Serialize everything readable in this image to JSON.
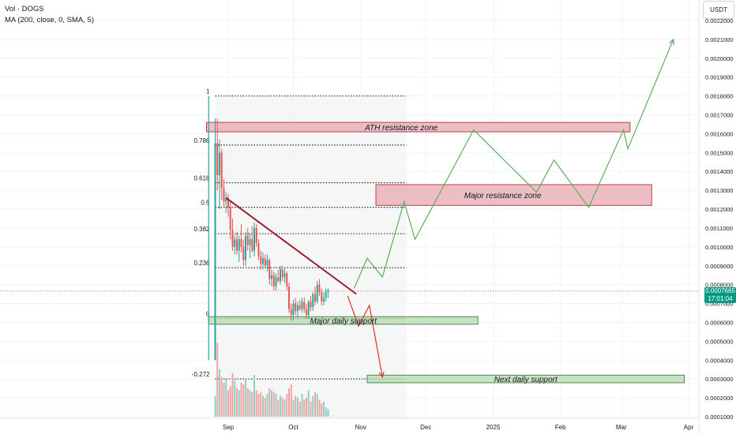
{
  "legend": {
    "line1": "Vol · DOGS",
    "line2": "MA (200, close, 0, SMA, 5)"
  },
  "currency": "USDT",
  "current_price": {
    "value": "0.0007665",
    "countdown": "17:01:04"
  },
  "colors": {
    "up": "#26a69a",
    "down": "#ef5350",
    "vol_up": "#8fd1c6",
    "vol_down": "#f5a3a0",
    "trend": "#9c1f2e",
    "path_up": "#5fae5a",
    "path_down": "#d9342b",
    "zone_red_fill": "#e7a9b0",
    "zone_red_border": "#b8404f",
    "zone_green_fill": "#b5d8b0",
    "zone_green_border": "#4f8a4a",
    "tag_green": "#089981"
  },
  "chart_data": {
    "type": "candlestick",
    "title": "",
    "y_scale": "linear",
    "ylim": [
      1e-05,
      0.00226
    ],
    "y_ticks": [
      "0.0022000",
      "0.0021000",
      "0.0020000",
      "0.0019000",
      "0.0018000",
      "0.0017000",
      "0.0016000",
      "0.0015000",
      "0.0014000",
      "0.0013000",
      "0.0012000",
      "0.0011000",
      "0.0010000",
      "0.0009000",
      "0.0008000",
      "0.0007000",
      "0.0006000",
      "0.0005000",
      "0.0004000",
      "0.0003000",
      "0.0002000",
      "0.0001000"
    ],
    "x_ticks": [
      {
        "label": "Sep",
        "date": "2024-09-01"
      },
      {
        "label": "Oct",
        "date": "2024-10-01"
      },
      {
        "label": "Nov",
        "date": "2024-11-01"
      },
      {
        "label": "Dec",
        "date": "2024-12-01"
      },
      {
        "label": "2025",
        "date": "2025-01-01"
      },
      {
        "label": "Feb",
        "date": "2025-02-01"
      },
      {
        "label": "Mar",
        "date": "2025-03-01"
      },
      {
        "label": "Apr",
        "date": "2025-04-01"
      }
    ],
    "fib_levels": [
      {
        "label": "1",
        "value": 0.0018
      },
      {
        "label": "0.786",
        "value": 0.00154
      },
      {
        "label": "0.618",
        "value": 0.00134
      },
      {
        "label": "0.5",
        "value": 0.00121
      },
      {
        "label": "0.382",
        "value": 0.00107
      },
      {
        "label": "0.236",
        "value": 0.00089
      },
      {
        "label": "0",
        "value": 0.00062
      },
      {
        "label": "-0.272",
        "value": 0.0003
      }
    ],
    "fib_range": {
      "start": "2024-08-26",
      "end": "2024-11-22"
    },
    "zones": [
      {
        "label": "ATH resistance zone",
        "type": "resistance",
        "start": "2024-08-22",
        "end": "2025-03-05",
        "y_low": 0.00161,
        "y_high": 0.00166
      },
      {
        "label": "Major resistance zone",
        "type": "resistance",
        "start": "2024-11-08",
        "end": "2025-03-15",
        "y_low": 0.00122,
        "y_high": 0.00133
      },
      {
        "label": "Major daily support",
        "type": "support",
        "start": "2024-08-23",
        "end": "2024-12-25",
        "y_low": 0.00059,
        "y_high": 0.00063
      },
      {
        "label": "Next daily support",
        "type": "support",
        "start": "2024-11-04",
        "end": "2025-03-30",
        "y_low": 0.00028,
        "y_high": 0.00032
      }
    ],
    "trendline": [
      {
        "date": "2024-08-31",
        "value": 0.00126
      },
      {
        "date": "2024-10-30",
        "value": 0.00075
      }
    ],
    "scenario_bullish": [
      {
        "date": "2024-10-29",
        "value": 0.00078
      },
      {
        "date": "2024-11-04",
        "value": 0.00094
      },
      {
        "date": "2024-11-11",
        "value": 0.00084
      },
      {
        "date": "2024-11-21",
        "value": 0.00124
      },
      {
        "date": "2024-11-26",
        "value": 0.00104
      },
      {
        "date": "2024-12-23",
        "value": 0.00162
      },
      {
        "date": "2025-01-21",
        "value": 0.00129
      },
      {
        "date": "2025-01-29",
        "value": 0.00146
      },
      {
        "date": "2025-02-14",
        "value": 0.00121
      },
      {
        "date": "2025-03-02",
        "value": 0.00162
      },
      {
        "date": "2025-03-04",
        "value": 0.00152
      },
      {
        "date": "2025-03-25",
        "value": 0.0021
      }
    ],
    "scenario_bearish": [
      {
        "date": "2024-10-26",
        "value": 0.00074
      },
      {
        "date": "2024-10-31",
        "value": 0.00058
      },
      {
        "date": "2024-11-05",
        "value": 0.00069
      },
      {
        "date": "2024-11-11",
        "value": 0.00031
      }
    ],
    "candles": [
      {
        "date": "2024-08-26",
        "o": 0.0004,
        "h": 0.00168,
        "l": 0.0004,
        "c": 0.00155
      },
      {
        "date": "2024-08-27",
        "o": 0.00155,
        "h": 0.00168,
        "l": 0.0013,
        "c": 0.00138
      },
      {
        "date": "2024-08-28",
        "o": 0.00138,
        "h": 0.00157,
        "l": 0.0012,
        "c": 0.0015
      },
      {
        "date": "2024-08-29",
        "o": 0.0015,
        "h": 0.00152,
        "l": 0.00125,
        "c": 0.00131
      },
      {
        "date": "2024-08-30",
        "o": 0.00131,
        "h": 0.00136,
        "l": 0.00121,
        "c": 0.00124
      },
      {
        "date": "2024-08-31",
        "o": 0.00124,
        "h": 0.00129,
        "l": 0.00118,
        "c": 0.00126
      },
      {
        "date": "2024-09-01",
        "o": 0.00126,
        "h": 0.00128,
        "l": 0.00116,
        "c": 0.00121
      },
      {
        "date": "2024-09-02",
        "o": 0.00121,
        "h": 0.00124,
        "l": 0.00104,
        "c": 0.00109
      },
      {
        "date": "2024-09-03",
        "o": 0.00109,
        "h": 0.00115,
        "l": 0.00098,
        "c": 0.001
      },
      {
        "date": "2024-09-04",
        "o": 0.001,
        "h": 0.00106,
        "l": 0.00096,
        "c": 0.00104
      },
      {
        "date": "2024-09-05",
        "o": 0.00104,
        "h": 0.00108,
        "l": 0.00096,
        "c": 0.00098
      },
      {
        "date": "2024-09-06",
        "o": 0.00098,
        "h": 0.00106,
        "l": 0.00092,
        "c": 0.00104
      },
      {
        "date": "2024-09-07",
        "o": 0.00104,
        "h": 0.00112,
        "l": 0.00097,
        "c": 0.001
      },
      {
        "date": "2024-09-08",
        "o": 0.001,
        "h": 0.00104,
        "l": 0.0009,
        "c": 0.00093
      },
      {
        "date": "2024-09-09",
        "o": 0.00093,
        "h": 0.00108,
        "l": 0.0009,
        "c": 0.00106
      },
      {
        "date": "2024-09-10",
        "o": 0.00106,
        "h": 0.0011,
        "l": 0.00098,
        "c": 0.00101
      },
      {
        "date": "2024-09-11",
        "o": 0.00101,
        "h": 0.00107,
        "l": 0.00094,
        "c": 0.00104
      },
      {
        "date": "2024-09-12",
        "o": 0.00104,
        "h": 0.00111,
        "l": 0.00097,
        "c": 0.00098
      },
      {
        "date": "2024-09-13",
        "o": 0.00098,
        "h": 0.00113,
        "l": 0.00095,
        "c": 0.0011
      },
      {
        "date": "2024-09-14",
        "o": 0.0011,
        "h": 0.00112,
        "l": 0.001,
        "c": 0.00102
      },
      {
        "date": "2024-09-15",
        "o": 0.00102,
        "h": 0.00104,
        "l": 0.00093,
        "c": 0.00095
      },
      {
        "date": "2024-09-16",
        "o": 0.00095,
        "h": 0.00098,
        "l": 0.00088,
        "c": 0.00091
      },
      {
        "date": "2024-09-17",
        "o": 0.00091,
        "h": 0.00097,
        "l": 0.00088,
        "c": 0.00094
      },
      {
        "date": "2024-09-18",
        "o": 0.00094,
        "h": 0.00096,
        "l": 0.00089,
        "c": 0.0009
      },
      {
        "date": "2024-09-19",
        "o": 0.0009,
        "h": 0.00096,
        "l": 0.00087,
        "c": 0.00093
      },
      {
        "date": "2024-09-20",
        "o": 0.00093,
        "h": 0.00094,
        "l": 0.0008,
        "c": 0.00083
      },
      {
        "date": "2024-09-21",
        "o": 0.00083,
        "h": 0.00088,
        "l": 0.00079,
        "c": 0.00085
      },
      {
        "date": "2024-09-22",
        "o": 0.00085,
        "h": 0.00087,
        "l": 0.00077,
        "c": 0.00079
      },
      {
        "date": "2024-09-23",
        "o": 0.00079,
        "h": 0.00086,
        "l": 0.00077,
        "c": 0.00084
      },
      {
        "date": "2024-09-24",
        "o": 0.00084,
        "h": 0.00088,
        "l": 0.00081,
        "c": 0.00082
      },
      {
        "date": "2024-09-25",
        "o": 0.00082,
        "h": 0.0009,
        "l": 0.0008,
        "c": 0.00088
      },
      {
        "date": "2024-09-26",
        "o": 0.00088,
        "h": 0.0009,
        "l": 0.00082,
        "c": 0.00084
      },
      {
        "date": "2024-09-27",
        "o": 0.00084,
        "h": 0.00089,
        "l": 0.00081,
        "c": 0.00086
      },
      {
        "date": "2024-09-28",
        "o": 0.00086,
        "h": 0.00087,
        "l": 0.00077,
        "c": 0.00079
      },
      {
        "date": "2024-09-29",
        "o": 0.00079,
        "h": 0.00081,
        "l": 0.00065,
        "c": 0.00067
      },
      {
        "date": "2024-09-30",
        "o": 0.00067,
        "h": 0.0007,
        "l": 0.00061,
        "c": 0.00064
      },
      {
        "date": "2024-10-01",
        "o": 0.00064,
        "h": 0.00072,
        "l": 0.00061,
        "c": 0.0007
      },
      {
        "date": "2024-10-02",
        "o": 0.0007,
        "h": 0.00073,
        "l": 0.00064,
        "c": 0.00066
      },
      {
        "date": "2024-10-03",
        "o": 0.00066,
        "h": 0.00071,
        "l": 0.00063,
        "c": 0.00069
      },
      {
        "date": "2024-10-04",
        "o": 0.00069,
        "h": 0.00072,
        "l": 0.00066,
        "c": 0.00067
      },
      {
        "date": "2024-10-05",
        "o": 0.00067,
        "h": 0.00073,
        "l": 0.00065,
        "c": 0.00071
      },
      {
        "date": "2024-10-06",
        "o": 0.00071,
        "h": 0.00073,
        "l": 0.00065,
        "c": 0.00067
      },
      {
        "date": "2024-10-07",
        "o": 0.00067,
        "h": 0.0007,
        "l": 0.00062,
        "c": 0.00064
      },
      {
        "date": "2024-10-08",
        "o": 0.00064,
        "h": 0.00072,
        "l": 0.00062,
        "c": 0.00071
      },
      {
        "date": "2024-10-09",
        "o": 0.00071,
        "h": 0.00074,
        "l": 0.00066,
        "c": 0.00068
      },
      {
        "date": "2024-10-10",
        "o": 0.00068,
        "h": 0.00076,
        "l": 0.00066,
        "c": 0.00075
      },
      {
        "date": "2024-10-11",
        "o": 0.00075,
        "h": 0.00079,
        "l": 0.00069,
        "c": 0.00071
      },
      {
        "date": "2024-10-12",
        "o": 0.00071,
        "h": 0.00082,
        "l": 0.0007,
        "c": 0.0008
      },
      {
        "date": "2024-10-13",
        "o": 0.0008,
        "h": 0.00083,
        "l": 0.00074,
        "c": 0.00076
      },
      {
        "date": "2024-10-14",
        "o": 0.00076,
        "h": 0.00078,
        "l": 0.00069,
        "c": 0.00071
      },
      {
        "date": "2024-10-15",
        "o": 0.00071,
        "h": 0.00076,
        "l": 0.00069,
        "c": 0.00073
      },
      {
        "date": "2024-10-16",
        "o": 0.00073,
        "h": 0.00078,
        "l": 0.00071,
        "c": 0.00076
      },
      {
        "date": "2024-10-17",
        "o": 0.00076,
        "h": 0.00078,
        "l": 0.00073,
        "c": 0.00077
      }
    ],
    "volume_pct": [
      0.22,
      0.78,
      0.5,
      0.42,
      0.36,
      0.4,
      0.28,
      0.32,
      0.46,
      0.38,
      0.3,
      0.28,
      0.36,
      0.34,
      0.4,
      0.3,
      0.28,
      0.26,
      0.44,
      0.28,
      0.24,
      0.26,
      0.22,
      0.2,
      0.24,
      0.3,
      0.28,
      0.26,
      0.24,
      0.18,
      0.22,
      0.2,
      0.18,
      0.24,
      0.3,
      0.34,
      0.18,
      0.22,
      0.2,
      0.16,
      0.24,
      0.18,
      0.2,
      0.28,
      0.16,
      0.22,
      0.26,
      0.24,
      0.18,
      0.14,
      0.16,
      0.1,
      0.08
    ]
  }
}
